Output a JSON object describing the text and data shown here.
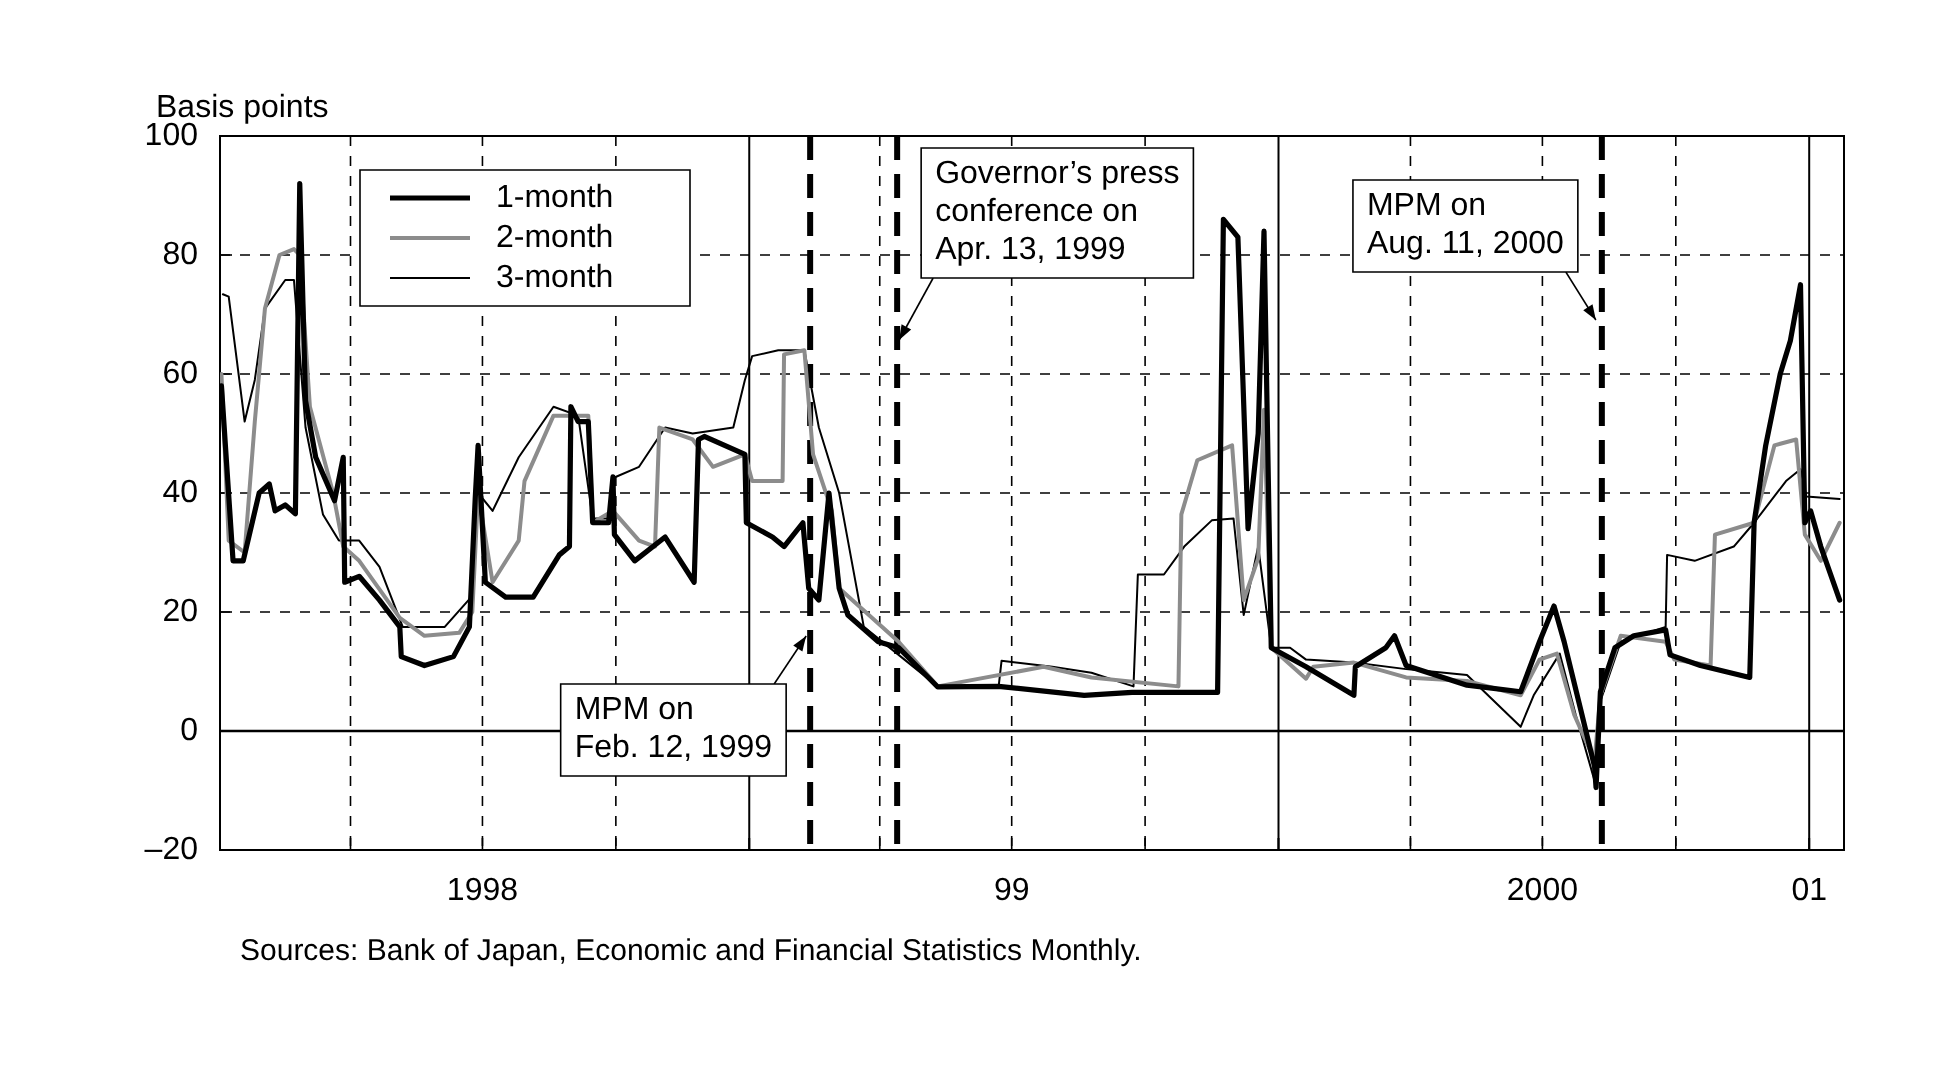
{
  "chart_data": {
    "type": "line",
    "ylabel": "Basis points",
    "xlim": [
      "1998-01-01",
      "2001-01-25"
    ],
    "ylim": [
      -20,
      100
    ],
    "xticks": [
      {
        "value": "1998-01-01",
        "label": null
      },
      {
        "value": "1998-04-01",
        "label": null
      },
      {
        "value": "1998-07-01",
        "label": "1998"
      },
      {
        "value": "1998-10-01",
        "label": null
      },
      {
        "value": "1999-01-01",
        "label": null
      },
      {
        "value": "1999-04-01",
        "label": null
      },
      {
        "value": "1999-07-01",
        "label": "99"
      },
      {
        "value": "1999-10-01",
        "label": null
      },
      {
        "value": "2000-01-01",
        "label": null
      },
      {
        "value": "2000-04-01",
        "label": null
      },
      {
        "value": "2000-07-01",
        "label": "2000"
      },
      {
        "value": "2000-10-01",
        "label": null
      },
      {
        "value": "2001-01-01",
        "label": "01"
      }
    ],
    "yticks": [
      {
        "value": -20,
        "label": "–20"
      },
      0,
      20,
      40,
      60,
      80,
      100
    ],
    "grid": true,
    "legend": "top left",
    "marker": "none",
    "line_style": "solid",
    "series": [
      {
        "name": "1-month",
        "color": "#000000",
        "x": [
          "1998-01-02",
          "1998-01-10",
          "1998-01-17",
          "1998-01-28",
          "1998-02-04",
          "1998-02-08",
          "1998-02-15",
          "1998-02-22",
          "1998-02-25",
          "1998-03-01",
          "1998-03-08",
          "1998-03-21",
          "1998-03-27",
          "1998-03-28",
          "1998-04-07",
          "1998-04-21",
          "1998-05-05",
          "1998-05-06",
          "1998-05-22",
          "1998-06-11",
          "1998-06-22",
          "1998-06-26",
          "1998-06-28",
          "1998-07-03",
          "1998-07-17",
          "1998-08-05",
          "1998-08-23",
          "1998-08-30",
          "1998-08-31",
          "1998-09-05",
          "1998-09-12",
          "1998-09-15",
          "1998-09-26",
          "1998-09-29",
          "1998-09-30",
          "1998-10-14",
          "1998-11-04",
          "1998-11-24",
          "1998-11-27",
          "1998-12-01",
          "1998-12-29",
          "1998-12-30",
          "1999-01-17",
          "1999-01-25",
          "1999-02-07",
          "1999-02-11",
          "1999-02-18",
          "1999-02-25",
          "1999-03-04",
          "1999-03-10",
          "1999-03-31",
          "1999-04-14",
          "1999-05-11",
          "1999-06-22",
          "1999-08-20",
          "1999-09-22",
          "1999-11-20",
          "1999-11-24",
          "1999-12-04",
          "1999-12-11",
          "1999-12-18",
          "1999-12-22",
          "1999-12-27",
          "2000-01-20",
          "2000-02-22",
          "2000-02-23",
          "2000-03-15",
          "2000-03-21",
          "2000-03-29",
          "2000-05-10",
          "2000-06-16",
          "2000-06-29",
          "2000-07-09",
          "2000-07-16",
          "2000-07-27",
          "2000-08-06",
          "2000-08-07",
          "2000-08-10",
          "2000-08-20",
          "2000-09-02",
          "2000-09-24",
          "2000-09-27",
          "2000-10-18",
          "2000-11-21",
          "2000-11-24",
          "2000-12-02",
          "2000-12-12",
          "2000-12-19",
          "2000-12-26",
          "2000-12-29",
          "2001-01-02",
          "2001-01-09",
          "2001-01-22"
        ],
        "values": [
          58,
          28.6,
          28.6,
          40,
          41.5,
          37,
          38,
          36.5,
          92,
          55.5,
          46,
          38.7,
          46,
          25,
          26,
          22,
          17.5,
          12.5,
          11,
          12.5,
          17.5,
          39,
          48,
          25,
          22.5,
          22.5,
          29.6,
          31,
          54.5,
          52,
          52,
          35,
          35,
          42.7,
          33,
          28.6,
          32.6,
          25,
          49,
          49.5,
          46.5,
          35,
          32.6,
          31,
          35,
          24,
          22,
          40,
          24,
          19.5,
          15,
          14,
          7.4,
          7.5,
          6,
          6.5,
          6.5,
          86,
          83,
          34,
          50,
          84,
          14,
          10.8,
          6,
          10.8,
          14,
          16,
          11,
          7.7,
          6.6,
          15,
          21,
          15,
          4,
          -6,
          -9.5,
          6.6,
          14,
          16,
          17,
          12.8,
          11,
          9,
          35,
          48,
          60,
          65.6,
          75,
          35,
          37,
          31,
          22
        ]
      },
      {
        "name": "2-month",
        "color": "#8c8c8c",
        "x": [
          "1998-01-02",
          "1998-01-07",
          "1998-01-18",
          "1998-01-25",
          "1998-02-01",
          "1998-02-11",
          "1998-02-21",
          "1998-02-25",
          "1998-03-04",
          "1998-03-20",
          "1998-03-27",
          "1998-04-07",
          "1998-05-05",
          "1998-05-22",
          "1998-06-15",
          "1998-06-24",
          "1998-06-28",
          "1998-07-08",
          "1998-07-26",
          "1998-07-30",
          "1998-08-19",
          "1998-09-01",
          "1998-09-12",
          "1998-09-15",
          "1998-09-29",
          "1998-10-17",
          "1998-10-28",
          "1998-10-31",
          "1998-11-23",
          "1998-12-07",
          "1998-12-29",
          "1999-01-03",
          "1999-01-24",
          "1999-01-25",
          "1999-02-08",
          "1999-02-14",
          "1999-02-27",
          "1999-03-04",
          "1999-04-14",
          "1999-05-11",
          "1999-07-23",
          "1999-08-25",
          "1999-10-24",
          "1999-10-26",
          "1999-11-06",
          "1999-11-30",
          "1999-12-08",
          "1999-12-18",
          "1999-12-22",
          "1999-12-27",
          "2000-01-20",
          "2000-01-25",
          "2000-02-22",
          "2000-03-29",
          "2000-05-10",
          "2000-06-16",
          "2000-06-29",
          "2000-07-11",
          "2000-07-23",
          "2000-08-06",
          "2000-08-10",
          "2000-08-24",
          "2000-09-24",
          "2000-09-30",
          "2000-10-25",
          "2000-10-28",
          "2000-11-24",
          "2000-12-08",
          "2000-12-23",
          "2000-12-29",
          "2001-01-09",
          "2001-01-22"
        ],
        "values": [
          60,
          32,
          30,
          52,
          71,
          80,
          81,
          80,
          54.5,
          40,
          31,
          28.6,
          19,
          16,
          16.5,
          20,
          40,
          25,
          32,
          42,
          53,
          53,
          53,
          35,
          37,
          32,
          31,
          51,
          49,
          44.4,
          46.5,
          42,
          42,
          63.3,
          64,
          46.5,
          37,
          24,
          15,
          7.5,
          10.8,
          9,
          7.5,
          36.4,
          45.5,
          48,
          22,
          29,
          54,
          14,
          8.8,
          10.8,
          11.5,
          9,
          8.4,
          6,
          12,
          13,
          2.7,
          -5,
          6,
          16,
          15,
          12,
          11,
          33,
          35,
          48,
          49,
          33,
          28.6,
          35
        ]
      },
      {
        "name": "3-month",
        "color": "#000000",
        "x": [
          "1998-01-03",
          "1998-01-07",
          "1998-01-18",
          "1998-01-25",
          "1998-02-01",
          "1998-02-15",
          "1998-02-21",
          "1998-03-01",
          "1998-03-13",
          "1998-03-24",
          "1998-04-07",
          "1998-04-21",
          "1998-05-07",
          "1998-06-05",
          "1998-06-24",
          "1998-06-28",
          "1998-07-08",
          "1998-07-26",
          "1998-08-19",
          "1998-09-05",
          "1998-09-15",
          "1998-09-26",
          "1998-09-30",
          "1998-10-17",
          "1998-11-04",
          "1998-11-23",
          "1998-12-21",
          "1998-12-29",
          "1999-01-03",
          "1999-01-21",
          "1999-02-08",
          "1999-02-18",
          "1999-03-04",
          "1999-03-21",
          "1999-05-11",
          "1999-06-22",
          "1999-06-24",
          "1999-07-29",
          "1999-08-25",
          "1999-09-23",
          "1999-09-26",
          "1999-10-14",
          "1999-10-28",
          "1999-11-16",
          "1999-12-01",
          "1999-12-08",
          "1999-12-18",
          "1999-12-27",
          "2000-01-09",
          "2000-01-20",
          "2000-02-22",
          "2000-03-29",
          "2000-05-10",
          "2000-06-16",
          "2000-06-25",
          "2000-07-13",
          "2000-07-24",
          "2000-08-06",
          "2000-08-10",
          "2000-08-24",
          "2000-09-24",
          "2000-09-25",
          "2000-10-14",
          "2000-11-10",
          "2000-11-24",
          "2000-12-16",
          "2000-12-26",
          "2000-12-30",
          "2001-01-22"
        ],
        "values": [
          73.4,
          73,
          52,
          59,
          71,
          75.8,
          75.8,
          51,
          36.4,
          32,
          32,
          27.6,
          17.5,
          17.5,
          22.7,
          40,
          37,
          46,
          54.5,
          53,
          35.7,
          35.7,
          42.6,
          44.4,
          51,
          50,
          51,
          59,
          63,
          64,
          64,
          51,
          40,
          17.5,
          7.5,
          7.5,
          11.8,
          10.8,
          9.8,
          7.5,
          26.3,
          26.3,
          31,
          35.4,
          35.7,
          19.5,
          31,
          14,
          14,
          12,
          11.5,
          10.4,
          9.4,
          0.7,
          6,
          13,
          2.7,
          -8.4,
          5,
          15,
          17.5,
          29.6,
          28.6,
          31,
          35,
          42,
          44,
          39.4,
          39
        ]
      }
    ],
    "ref_lines": [
      {
        "axis": "y",
        "value": 0,
        "color": "#000000",
        "line_style": "solid"
      },
      {
        "axis": "x",
        "value": "1999-02-12",
        "label": "MPM on\nFeb. 12, 1999",
        "color": "#000000",
        "line_style": "dashed"
      },
      {
        "axis": "x",
        "value": "1999-04-13",
        "label": "Governor’s press\nconference on\nApr. 13, 1999",
        "color": "#000000",
        "line_style": "dashed"
      },
      {
        "axis": "x",
        "value": "2000-08-11",
        "label": "MPM on\nAug. 11, 2000",
        "color": "#000000",
        "line_style": "dashed"
      }
    ],
    "annotations": [
      "Sources: Bank of Japan, Economic and Financial Statistics Monthly."
    ]
  }
}
